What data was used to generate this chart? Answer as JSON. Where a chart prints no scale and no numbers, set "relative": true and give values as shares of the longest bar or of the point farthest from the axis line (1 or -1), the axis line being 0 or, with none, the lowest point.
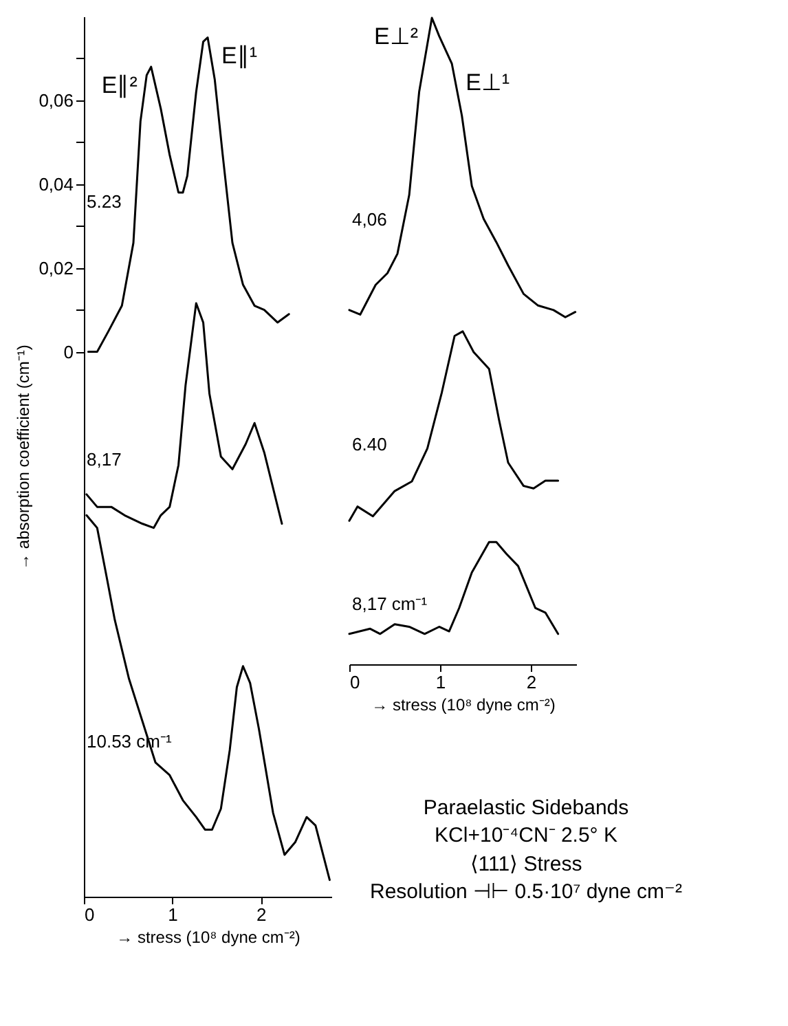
{
  "chart_data": [
    {
      "type": "line",
      "xlabel": "→ stress (10⁸ dyne cm⁻²)",
      "ylabel": "→ absorption coefficient (cm⁻¹)",
      "xlim": [
        0,
        2.8
      ],
      "xticks": [
        0,
        1,
        2
      ],
      "ylim": [
        -0.13,
        0.08
      ],
      "yticks": [
        {
          "value": 0,
          "label": "0"
        },
        {
          "value": 0.01,
          "label": null
        },
        {
          "value": 0.02,
          "label": "0,02"
        },
        {
          "value": 0.03,
          "label": null
        },
        {
          "value": 0.04,
          "label": "0,04"
        },
        {
          "value": 0.05,
          "label": null
        },
        {
          "value": 0.06,
          "label": "0,06"
        },
        {
          "value": 0.07,
          "label": null
        }
      ],
      "series": [
        {
          "name": "5.23",
          "color": "#000000",
          "x": [
            0.05,
            0.15,
            0.28,
            0.43,
            0.56,
            0.64,
            0.71,
            0.76,
            0.87,
            0.97,
            1.07,
            1.12,
            1.17,
            1.27,
            1.35,
            1.4,
            1.48,
            1.57,
            1.68,
            1.8,
            1.93,
            2.04,
            2.19,
            2.32
          ],
          "values": [
            0.0,
            0.0,
            0.005,
            0.011,
            0.026,
            0.055,
            0.066,
            0.068,
            0.058,
            0.047,
            0.038,
            0.038,
            0.042,
            0.062,
            0.074,
            0.075,
            0.065,
            0.047,
            0.026,
            0.016,
            0.011,
            0.01,
            0.007,
            0.009
          ]
        },
        {
          "name": "8,17",
          "color": "#000000",
          "x": [
            0.03,
            0.15,
            0.31,
            0.46,
            0.66,
            0.79,
            0.87,
            0.97,
            1.07,
            1.15,
            1.27,
            1.35,
            1.42,
            1.55,
            1.68,
            1.83,
            1.93,
            2.04,
            2.24
          ],
          "values": [
            -0.034,
            -0.037,
            -0.037,
            -0.039,
            -0.041,
            -0.042,
            -0.039,
            -0.037,
            -0.027,
            -0.008,
            0.0116,
            0.007,
            -0.01,
            -0.025,
            -0.028,
            -0.022,
            -0.017,
            -0.024,
            -0.041
          ]
        },
        {
          "name": "10.53 cm⁻¹",
          "color": "#000000",
          "x": [
            0.03,
            0.15,
            0.26,
            0.35,
            0.51,
            0.66,
            0.81,
            0.97,
            1.12,
            1.27,
            1.37,
            1.45,
            1.55,
            1.65,
            1.73,
            1.8,
            1.88,
            1.98,
            2.14,
            2.27,
            2.39,
            2.52,
            2.62,
            2.78
          ],
          "values": [
            -0.039,
            -0.042,
            -0.054,
            -0.064,
            -0.078,
            -0.088,
            -0.098,
            -0.101,
            -0.107,
            -0.111,
            -0.114,
            -0.114,
            -0.109,
            -0.095,
            -0.08,
            -0.075,
            -0.079,
            -0.09,
            -0.11,
            -0.12,
            -0.117,
            -0.111,
            -0.113,
            -0.126
          ]
        }
      ],
      "annotations": [
        {
          "text": "E∥²",
          "x": 0.76,
          "y": 0.068
        },
        {
          "text": "E∥¹",
          "x": 1.4,
          "y": 0.075
        }
      ]
    },
    {
      "type": "line",
      "relative": true,
      "xlabel": "→ stress (10⁸ dyne cm⁻²)",
      "xlim": [
        0,
        2.5
      ],
      "xticks": [
        0,
        1,
        2
      ],
      "tick_labels": "x",
      "series": [
        {
          "name": "4,06",
          "color": "#000000",
          "x": [
            0,
            0.12,
            0.29,
            0.42,
            0.53,
            0.66,
            0.77,
            0.91,
            0.99,
            1.13,
            1.24,
            1.35,
            1.48,
            1.62,
            1.75,
            1.92,
            2.08,
            2.25,
            2.38,
            2.49
          ],
          "values": [
            0.548,
            0.541,
            0.587,
            0.605,
            0.635,
            0.726,
            0.886,
            1.0,
            0.972,
            0.929,
            0.849,
            0.74,
            0.689,
            0.653,
            0.617,
            0.573,
            0.555,
            0.548,
            0.537,
            0.545
          ]
        },
        {
          "name": "6.40",
          "color": "#000000",
          "x": [
            0,
            0.09,
            0.26,
            0.5,
            0.69,
            0.86,
            1.02,
            1.16,
            1.25,
            1.37,
            1.54,
            1.65,
            1.75,
            1.92,
            2.03,
            2.16,
            2.3
          ],
          "values": [
            0.222,
            0.244,
            0.229,
            0.268,
            0.283,
            0.334,
            0.421,
            0.508,
            0.515,
            0.483,
            0.457,
            0.378,
            0.312,
            0.276,
            0.272,
            0.284,
            0.284
          ]
        },
        {
          "name": "8,17 cm⁻¹",
          "color": "#000000",
          "x": [
            0,
            0.23,
            0.34,
            0.5,
            0.66,
            0.83,
            0.99,
            1.1,
            1.21,
            1.35,
            1.54,
            1.62,
            1.73,
            1.86,
            2.05,
            2.16,
            2.3
          ],
          "values": [
            0.047,
            0.055,
            0.047,
            0.062,
            0.058,
            0.047,
            0.058,
            0.051,
            0.087,
            0.142,
            0.189,
            0.189,
            0.171,
            0.152,
            0.087,
            0.08,
            0.047
          ]
        }
      ],
      "annotations": [
        {
          "text": "E⊥²",
          "x": 0.91,
          "y": 1.0
        },
        {
          "text": "E⊥¹",
          "x": 1.13,
          "y": 0.929
        },
        "Paraelastic Sidebands",
        "KCl+10⁻⁴CN⁻ 2.5° K",
        "⟨111⟩ Stress",
        "Resolution ⊣⊢ 0.5·10⁷ dyne cm⁻²"
      ]
    }
  ]
}
